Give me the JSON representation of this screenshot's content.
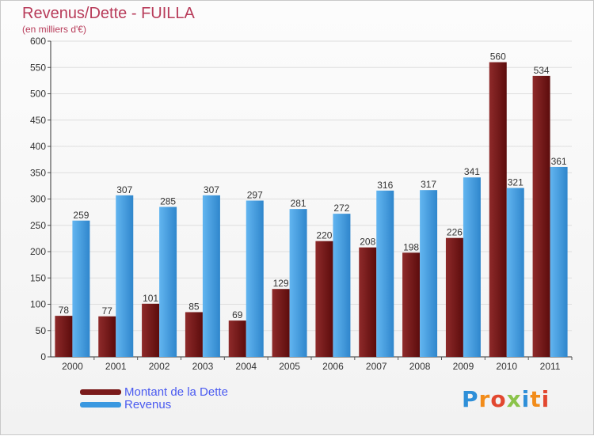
{
  "chart_data": {
    "type": "bar",
    "title": "Revenus/Dette - FUILLA",
    "subtitle": "(en milliers d'€)",
    "categories": [
      "2000",
      "2001",
      "2002",
      "2003",
      "2004",
      "2005",
      "2006",
      "2007",
      "2008",
      "2009",
      "2010",
      "2011"
    ],
    "series": [
      {
        "name": "Montant de la Dette",
        "color": "#7a1a1a",
        "values": [
          78,
          77,
          101,
          85,
          69,
          129,
          220,
          208,
          198,
          226,
          560,
          534
        ]
      },
      {
        "name": "Revenus",
        "color": "#3a98e0",
        "values": [
          259,
          307,
          285,
          307,
          297,
          281,
          272,
          316,
          317,
          341,
          321,
          361
        ]
      }
    ],
    "ylim": [
      0,
      600
    ],
    "yticks": [
      0,
      50,
      100,
      150,
      200,
      250,
      300,
      350,
      400,
      450,
      500,
      550,
      600
    ],
    "grid": true,
    "legend_position": "bottom-left"
  },
  "logo_text": "Proxiti"
}
